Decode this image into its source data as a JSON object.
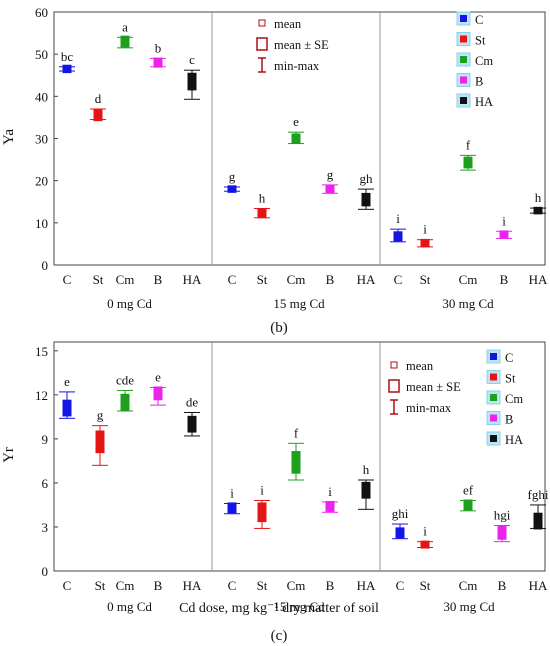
{
  "colors": {
    "C": "#1414e6",
    "St": "#e61414",
    "Cm": "#1ea01e",
    "B": "#ee22ee",
    "HA": "#111111",
    "axis": "#444444",
    "whisker_mean": "#aa1111"
  },
  "chart_data": [
    {
      "type": "scatter",
      "panel_label": "(b)",
      "ylabel": "Ya",
      "xlabel": "",
      "ylim": [
        0,
        60
      ],
      "yticks": [
        0,
        10,
        20,
        30,
        40,
        50,
        60
      ],
      "groups": [
        "0 mg Cd",
        "15 mg Cd",
        "30 mg Cd"
      ],
      "categories": [
        "C",
        "St",
        "Cm",
        "B",
        "HA"
      ],
      "legend_stats": [
        "mean",
        "mean ± SE",
        "min-max"
      ],
      "legend_series": [
        "C",
        "St",
        "Cm",
        "B",
        "HA"
      ],
      "grid": false,
      "points": [
        {
          "group": 0,
          "cat": "C",
          "mean": 46.5,
          "se": 0.4,
          "min": 46.0,
          "max": 47.0,
          "letter": "bc"
        },
        {
          "group": 0,
          "cat": "St",
          "mean": 35.5,
          "se": 0.8,
          "min": 34.5,
          "max": 37.0,
          "letter": "d"
        },
        {
          "group": 0,
          "cat": "Cm",
          "mean": 53.0,
          "se": 0.8,
          "min": 51.5,
          "max": 54.0,
          "letter": "a"
        },
        {
          "group": 0,
          "cat": "B",
          "mean": 48.0,
          "se": 0.6,
          "min": 47.0,
          "max": 49.0,
          "letter": "b"
        },
        {
          "group": 0,
          "cat": "HA",
          "mean": 43.5,
          "se": 1.5,
          "min": 39.3,
          "max": 46.2,
          "letter": "c"
        },
        {
          "group": 1,
          "cat": "C",
          "mean": 18.0,
          "se": 0.3,
          "min": 17.5,
          "max": 18.5,
          "letter": "g"
        },
        {
          "group": 1,
          "cat": "St",
          "mean": 12.3,
          "se": 0.6,
          "min": 11.2,
          "max": 13.4,
          "letter": "h"
        },
        {
          "group": 1,
          "cat": "Cm",
          "mean": 30.0,
          "se": 0.6,
          "min": 28.8,
          "max": 31.5,
          "letter": "e"
        },
        {
          "group": 1,
          "cat": "B",
          "mean": 18.0,
          "se": 0.4,
          "min": 17.0,
          "max": 19.0,
          "letter": "g"
        },
        {
          "group": 1,
          "cat": "HA",
          "mean": 15.5,
          "se": 1.0,
          "min": 13.2,
          "max": 18.0,
          "letter": "gh"
        },
        {
          "group": 2,
          "cat": "C",
          "mean": 6.8,
          "se": 0.6,
          "min": 5.5,
          "max": 8.5,
          "letter": "i"
        },
        {
          "group": 2,
          "cat": "St",
          "mean": 5.2,
          "se": 0.4,
          "min": 4.3,
          "max": 6.0,
          "letter": "i"
        },
        {
          "group": 2,
          "cat": "Cm",
          "mean": 24.3,
          "se": 0.8,
          "min": 22.5,
          "max": 26.0,
          "letter": "f"
        },
        {
          "group": 2,
          "cat": "B",
          "mean": 7.2,
          "se": 0.4,
          "min": 6.3,
          "max": 8.0,
          "letter": "i"
        },
        {
          "group": 2,
          "cat": "HA",
          "mean": 12.9,
          "se": 0.3,
          "min": 12.3,
          "max": 13.5,
          "letter": "h"
        }
      ]
    },
    {
      "type": "scatter",
      "panel_label": "(c)",
      "ylabel": "Yr",
      "xlabel": "Cd dose, mg kg⁻¹ dry matter of soil",
      "ylim": [
        0,
        15.6
      ],
      "yticks": [
        0,
        3,
        6,
        9,
        12,
        15
      ],
      "groups": [
        "0 mg Cd",
        "15 mg Cd",
        "30 mg Cd"
      ],
      "categories": [
        "C",
        "St",
        "Cm",
        "B",
        "HA"
      ],
      "legend_stats": [
        "mean",
        "mean ± SE",
        "min-max"
      ],
      "legend_series": [
        "C",
        "St",
        "Cm",
        "B",
        "HA"
      ],
      "grid": false,
      "points": [
        {
          "group": 0,
          "cat": "C",
          "mean": 11.1,
          "se": 0.4,
          "min": 10.4,
          "max": 12.2,
          "letter": "e"
        },
        {
          "group": 0,
          "cat": "St",
          "mean": 8.8,
          "se": 0.6,
          "min": 7.2,
          "max": 9.9,
          "letter": "g"
        },
        {
          "group": 0,
          "cat": "Cm",
          "mean": 11.5,
          "se": 0.4,
          "min": 10.9,
          "max": 12.3,
          "letter": "cde"
        },
        {
          "group": 0,
          "cat": "B",
          "mean": 12.1,
          "se": 0.3,
          "min": 11.3,
          "max": 12.5,
          "letter": "e"
        },
        {
          "group": 0,
          "cat": "HA",
          "mean": 10.0,
          "se": 0.4,
          "min": 9.2,
          "max": 10.8,
          "letter": "de"
        },
        {
          "group": 1,
          "cat": "C",
          "mean": 4.3,
          "se": 0.2,
          "min": 3.9,
          "max": 4.6,
          "letter": "i"
        },
        {
          "group": 1,
          "cat": "St",
          "mean": 4.0,
          "se": 0.5,
          "min": 2.9,
          "max": 4.8,
          "letter": "i"
        },
        {
          "group": 1,
          "cat": "Cm",
          "mean": 7.4,
          "se": 0.6,
          "min": 6.2,
          "max": 8.7,
          "letter": "f"
        },
        {
          "group": 1,
          "cat": "B",
          "mean": 4.4,
          "se": 0.2,
          "min": 4.0,
          "max": 4.7,
          "letter": "i"
        },
        {
          "group": 1,
          "cat": "HA",
          "mean": 5.5,
          "se": 0.4,
          "min": 4.2,
          "max": 6.2,
          "letter": "h"
        },
        {
          "group": 2,
          "cat": "C",
          "mean": 2.6,
          "se": 0.2,
          "min": 2.2,
          "max": 3.2,
          "letter": "ghi"
        },
        {
          "group": 2,
          "cat": "St",
          "mean": 1.8,
          "se": 0.1,
          "min": 1.6,
          "max": 2.0,
          "letter": "i"
        },
        {
          "group": 2,
          "cat": "Cm",
          "mean": 4.5,
          "se": 0.2,
          "min": 4.1,
          "max": 4.8,
          "letter": "ef"
        },
        {
          "group": 2,
          "cat": "B",
          "mean": 2.6,
          "se": 0.3,
          "min": 2.0,
          "max": 3.1,
          "letter": "hgi"
        },
        {
          "group": 2,
          "cat": "HA",
          "mean": 3.4,
          "se": 0.4,
          "min": 2.9,
          "max": 4.5,
          "letter": "fghi"
        }
      ]
    }
  ]
}
